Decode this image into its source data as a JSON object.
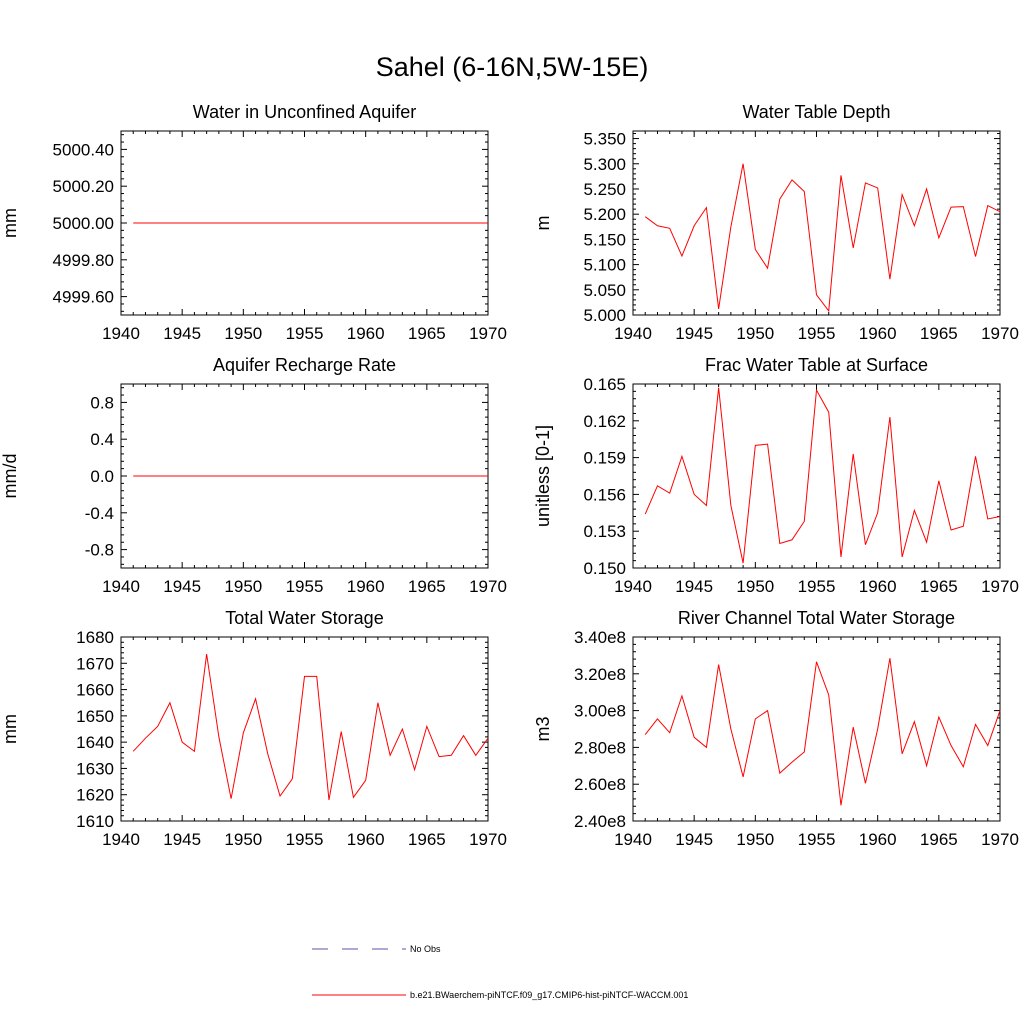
{
  "title": "Sahel (6-16N,5W-15E)",
  "colors": {
    "model": "#ff0000",
    "obs": "#5555aa",
    "axis": "#000000"
  },
  "legend": {
    "obs_label": "No Obs",
    "model_label": "b.e21.BWaerchem-piNTCF.f09_g17.CMIP6-hist-piNTCF-WACCM.001"
  },
  "chart_data": [
    {
      "type": "line",
      "title": "Water in Unconfined Aquifer",
      "ylabel": "mm",
      "xlim": [
        1940,
        1970
      ],
      "ylim": [
        4999.5,
        5000.5
      ],
      "xticks": [
        1940,
        1945,
        1950,
        1955,
        1960,
        1965,
        1970
      ],
      "yticks": [
        4999.6,
        4999.8,
        5000.0,
        5000.2,
        5000.4
      ],
      "yticklabels": [
        "4999.60",
        "4999.80",
        "5000.00",
        "5000.20",
        "5000.40"
      ],
      "x": [
        1941,
        1970
      ],
      "series": [
        {
          "values": [
            5000.0,
            5000.0
          ]
        }
      ]
    },
    {
      "type": "line",
      "title": "Water Table Depth",
      "ylabel": "m",
      "xlim": [
        1940,
        1970
      ],
      "ylim": [
        5.0,
        5.365
      ],
      "xticks": [
        1940,
        1945,
        1950,
        1955,
        1960,
        1965,
        1970
      ],
      "yticks": [
        5.0,
        5.05,
        5.1,
        5.15,
        5.2,
        5.25,
        5.3,
        5.35
      ],
      "yticklabels": [
        "5.000",
        "5.050",
        "5.100",
        "5.150",
        "5.200",
        "5.250",
        "5.300",
        "5.350"
      ],
      "x": [
        1941,
        1942,
        1943,
        1944,
        1945,
        1946,
        1947,
        1948,
        1949,
        1950,
        1951,
        1952,
        1953,
        1954,
        1955,
        1956,
        1957,
        1958,
        1959,
        1960,
        1961,
        1962,
        1963,
        1964,
        1965,
        1966,
        1967,
        1968,
        1969,
        1970
      ],
      "series": [
        {
          "values": [
            5.195,
            5.177,
            5.172,
            5.117,
            5.177,
            5.213,
            5.012,
            5.175,
            5.3,
            5.13,
            5.093,
            5.23,
            5.268,
            5.245,
            5.04,
            5.008,
            5.277,
            5.133,
            5.262,
            5.252,
            5.071,
            5.239,
            5.177,
            5.25,
            5.153,
            5.214,
            5.215,
            5.116,
            5.217,
            5.205
          ]
        }
      ]
    },
    {
      "type": "line",
      "title": "Aquifer Recharge Rate",
      "ylabel": "mm/d",
      "xlim": [
        1940,
        1970
      ],
      "ylim": [
        -1.0,
        1.0
      ],
      "xticks": [
        1940,
        1945,
        1950,
        1955,
        1960,
        1965,
        1970
      ],
      "yticks": [
        -0.8,
        -0.4,
        0.0,
        0.4,
        0.8
      ],
      "yticklabels": [
        "-0.8",
        "-0.4",
        "0.0",
        "0.4",
        "0.8"
      ],
      "x": [
        1941,
        1970
      ],
      "series": [
        {
          "values": [
            0.0,
            0.0
          ]
        }
      ]
    },
    {
      "type": "line",
      "title": "Frac Water Table at Surface",
      "ylabel": "unitless [0-1]",
      "xlim": [
        1940,
        1970
      ],
      "ylim": [
        0.15,
        0.165
      ],
      "xticks": [
        1940,
        1945,
        1950,
        1955,
        1960,
        1965,
        1970
      ],
      "yticks": [
        0.15,
        0.153,
        0.156,
        0.159,
        0.162,
        0.165
      ],
      "yticklabels": [
        "0.150",
        "0.153",
        "0.156",
        "0.159",
        "0.162",
        "0.165"
      ],
      "x": [
        1941,
        1942,
        1943,
        1944,
        1945,
        1946,
        1947,
        1948,
        1949,
        1950,
        1951,
        1952,
        1953,
        1954,
        1955,
        1956,
        1957,
        1958,
        1959,
        1960,
        1961,
        1962,
        1963,
        1964,
        1965,
        1966,
        1967,
        1968,
        1969,
        1970
      ],
      "series": [
        {
          "values": [
            0.1544,
            0.1567,
            0.1561,
            0.1591,
            0.156,
            0.1551,
            0.1647,
            0.1551,
            0.1504,
            0.16,
            0.1601,
            0.152,
            0.1523,
            0.1538,
            0.1645,
            0.1627,
            0.1509,
            0.1593,
            0.1519,
            0.1545,
            0.1623,
            0.1509,
            0.1547,
            0.1521,
            0.1571,
            0.1531,
            0.1534,
            0.1591,
            0.154,
            0.1542
          ]
        }
      ]
    },
    {
      "type": "line",
      "title": "Total Water Storage",
      "ylabel": "mm",
      "xlim": [
        1940,
        1970
      ],
      "ylim": [
        1610,
        1680
      ],
      "xticks": [
        1940,
        1945,
        1950,
        1955,
        1960,
        1965,
        1970
      ],
      "yticks": [
        1610,
        1620,
        1630,
        1640,
        1650,
        1660,
        1670,
        1680
      ],
      "yticklabels": [
        "1610",
        "1620",
        "1630",
        "1640",
        "1650",
        "1660",
        "1670",
        "1680"
      ],
      "x": [
        1941,
        1942,
        1943,
        1944,
        1945,
        1946,
        1947,
        1948,
        1949,
        1950,
        1951,
        1952,
        1953,
        1954,
        1955,
        1956,
        1957,
        1958,
        1959,
        1960,
        1961,
        1962,
        1963,
        1964,
        1965,
        1966,
        1967,
        1968,
        1969,
        1970
      ],
      "series": [
        {
          "values": [
            1636.5,
            1641.5,
            1646.0,
            1655.0,
            1640.0,
            1636.5,
            1673.5,
            1642.0,
            1618.5,
            1643.5,
            1656.5,
            1635.5,
            1619.5,
            1626.0,
            1665.0,
            1665.0,
            1618.0,
            1644.0,
            1619.0,
            1625.5,
            1655.0,
            1635.0,
            1645.0,
            1629.5,
            1646.0,
            1634.5,
            1635.0,
            1642.5,
            1635.0,
            1641.5
          ]
        }
      ]
    },
    {
      "type": "line",
      "title": "River Channel Total Water Storage",
      "ylabel": "m3",
      "xlim": [
        1940,
        1970
      ],
      "ylim": [
        240000000,
        340000000
      ],
      "xticks": [
        1940,
        1945,
        1950,
        1955,
        1960,
        1965,
        1970
      ],
      "yticks": [
        240000000,
        260000000,
        280000000,
        300000000,
        320000000,
        340000000
      ],
      "yticklabels": [
        "2.40e8",
        "2.60e8",
        "2.80e8",
        "3.00e8",
        "3.20e8",
        "3.40e8"
      ],
      "x": [
        1941,
        1942,
        1943,
        1944,
        1945,
        1946,
        1947,
        1948,
        1949,
        1950,
        1951,
        1952,
        1953,
        1954,
        1955,
        1956,
        1957,
        1958,
        1959,
        1960,
        1961,
        1962,
        1963,
        1964,
        1965,
        1966,
        1967,
        1968,
        1969,
        1970
      ],
      "series": [
        {
          "values": [
            287000000,
            295500000,
            288000000,
            308000000,
            285500000,
            280000000,
            325000000,
            290000000,
            264000000,
            295500000,
            300000000,
            266000000,
            272000000,
            277500000,
            326500000,
            308500000,
            248500000,
            291000000,
            260500000,
            290000000,
            328500000,
            276500000,
            294000000,
            270000000,
            296500000,
            281000000,
            269500000,
            292500000,
            281000000,
            300000000
          ]
        }
      ]
    }
  ]
}
